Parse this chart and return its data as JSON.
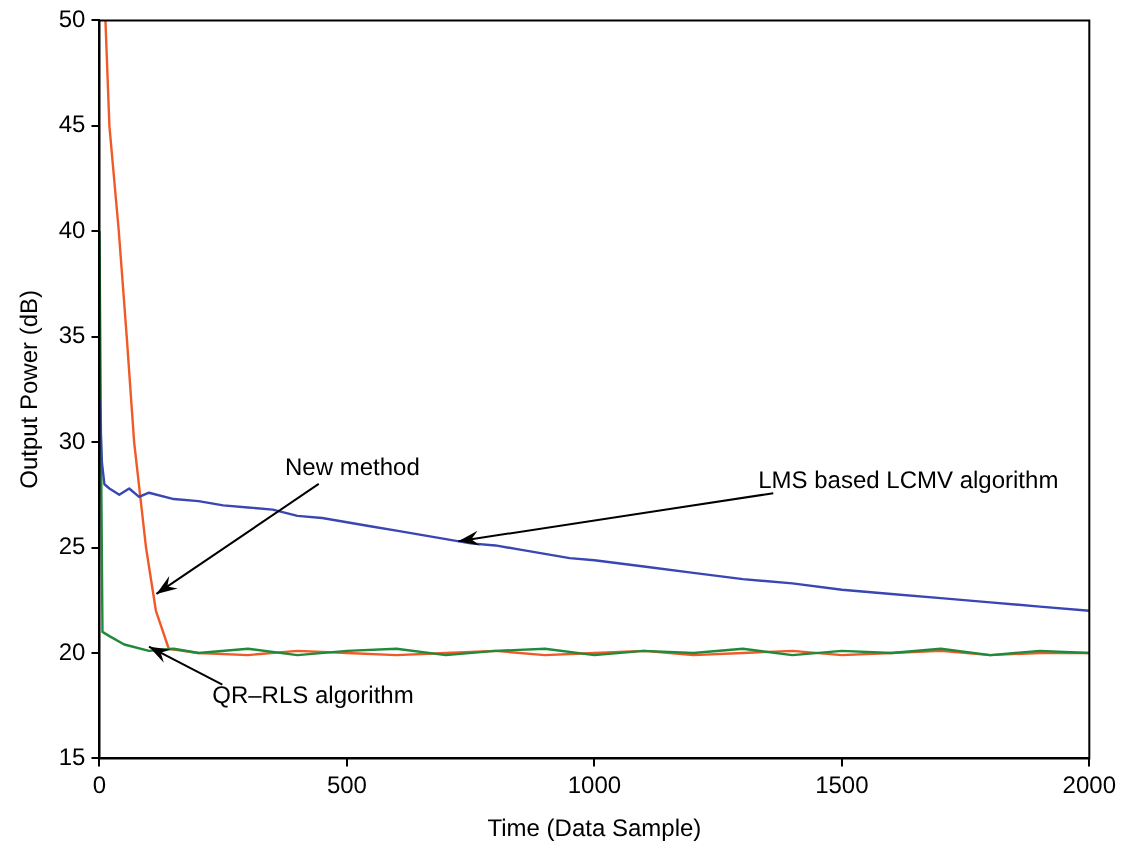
{
  "chart_data": {
    "type": "line",
    "xlabel": "Time (Data Sample)",
    "ylabel": "Output Power (dB)",
    "xlim": [
      0,
      2000
    ],
    "xticks": [
      0,
      500,
      1000,
      1500,
      2000
    ],
    "ylim": [
      15,
      50
    ],
    "yticks": [
      15,
      20,
      25,
      30,
      35,
      40,
      45,
      50
    ],
    "grid": false,
    "legend": false,
    "marker": "none",
    "line_style": "solid",
    "series": [
      {
        "color": "#3a46b4",
        "x": [
          0,
          5,
          10,
          20,
          40,
          60,
          80,
          100,
          150,
          200,
          250,
          300,
          350,
          400,
          450,
          500,
          550,
          600,
          650,
          700,
          750,
          800,
          850,
          900,
          950,
          1000,
          1100,
          1200,
          1300,
          1400,
          1500,
          1600,
          1700,
          1800,
          1900,
          2000
        ],
        "values": [
          32,
          29,
          28,
          27.8,
          27.5,
          27.8,
          27.4,
          27.6,
          27.3,
          27.2,
          27,
          26.9,
          26.8,
          26.5,
          26.4,
          26.2,
          26,
          25.8,
          25.6,
          25.4,
          25.2,
          25.1,
          24.9,
          24.7,
          24.5,
          24.4,
          24.1,
          23.8,
          23.5,
          23.3,
          23,
          22.8,
          22.6,
          22.4,
          22.2,
          22
        ]
      },
      {
        "color": "#1f8a3a",
        "x": [
          0,
          3,
          6,
          20,
          50,
          100,
          150,
          200,
          300,
          400,
          500,
          600,
          700,
          800,
          900,
          1000,
          1100,
          1200,
          1300,
          1400,
          1500,
          1600,
          1700,
          1800,
          1900,
          2000
        ],
        "values": [
          40,
          30,
          21,
          20.8,
          20.4,
          20.1,
          20.2,
          20,
          20.2,
          19.9,
          20.1,
          20.2,
          19.9,
          20.1,
          20.2,
          19.9,
          20.1,
          20,
          20.2,
          19.9,
          20.1,
          20,
          20.2,
          19.9,
          20.1,
          20
        ]
      },
      {
        "color": "#f05a28",
        "x": [
          12,
          20,
          39,
          55,
          70,
          94,
          114,
          140,
          200,
          300,
          400,
          500,
          600,
          700,
          800,
          900,
          1000,
          1100,
          1200,
          1300,
          1400,
          1500,
          1600,
          1700,
          1800,
          1900,
          2000
        ],
        "values": [
          50,
          45,
          40,
          35,
          30,
          25,
          22,
          20.2,
          20,
          19.9,
          20.1,
          20,
          19.9,
          20,
          20.1,
          19.9,
          20,
          20.1,
          19.9,
          20,
          20.1,
          19.9,
          20,
          20.1,
          19.9,
          20,
          20
        ]
      }
    ],
    "annotations": [
      {
        "text": "LMS based LCMV algorithm",
        "x": 725,
        "y": 25.3
      },
      {
        "text": "New method",
        "x": 115,
        "y": 22.8
      },
      {
        "text": "QR–RLS algorithm",
        "x": 100,
        "y": 20.3
      }
    ]
  }
}
